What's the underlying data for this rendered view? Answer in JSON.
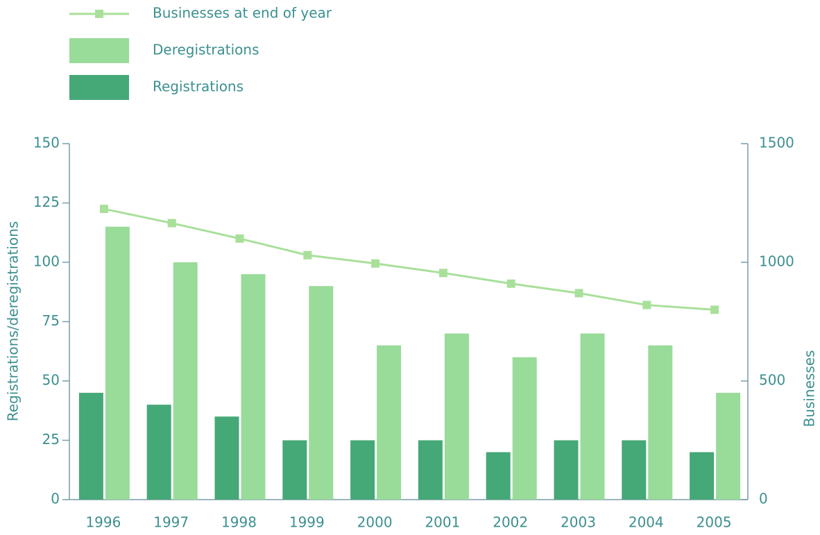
{
  "chart_data": {
    "type": "bar",
    "categories": [
      "1996",
      "1997",
      "1998",
      "1999",
      "2000",
      "2001",
      "2002",
      "2003",
      "2004",
      "2005"
    ],
    "series": [
      {
        "name": "Businesses at end of year",
        "type": "line",
        "axis": "y2",
        "color": "#a8e09a",
        "values": [
          1225,
          1165,
          1100,
          1030,
          995,
          955,
          910,
          870,
          820,
          800
        ]
      },
      {
        "name": "Deregistrations",
        "type": "bar",
        "color": "#99db99",
        "values": [
          115,
          100,
          95,
          90,
          65,
          70,
          60,
          70,
          65,
          45
        ]
      },
      {
        "name": "Registrations",
        "type": "bar",
        "color": "#45a877",
        "values": [
          45,
          40,
          35,
          25,
          25,
          25,
          20,
          25,
          25,
          20
        ]
      }
    ],
    "y_label": "Registrations/deregistrations",
    "y2_label": "Businesses",
    "ylim": [
      0,
      150
    ],
    "yticks": [
      0,
      25,
      50,
      75,
      100,
      125,
      150
    ],
    "y2lim": [
      0,
      1500
    ],
    "y2ticks": [
      0,
      500,
      1000,
      1500
    ],
    "legend": "top-left"
  }
}
